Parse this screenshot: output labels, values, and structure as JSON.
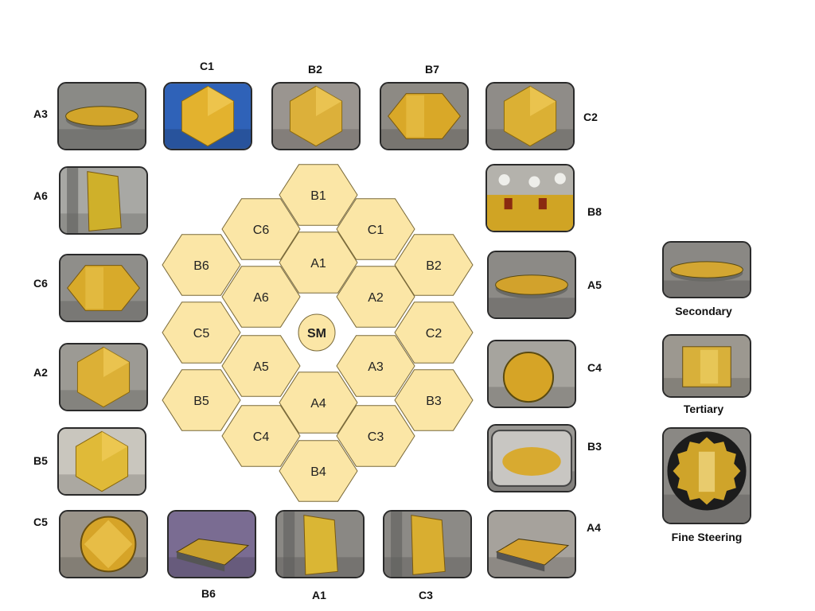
{
  "segments": [
    {
      "label": "B1"
    },
    {
      "label": "C6"
    },
    {
      "label": "C1"
    },
    {
      "label": "A1"
    },
    {
      "label": "B6"
    },
    {
      "label": "B2"
    },
    {
      "label": "A6"
    },
    {
      "label": "A2"
    },
    {
      "label": "C5"
    },
    {
      "label": "C2"
    },
    {
      "label": "A5"
    },
    {
      "label": "A3"
    },
    {
      "label": "B5"
    },
    {
      "label": "A4"
    },
    {
      "label": "B3"
    },
    {
      "label": "C4"
    },
    {
      "label": "C3"
    },
    {
      "label": "B4"
    }
  ],
  "center": {
    "label": "SM"
  },
  "photos": [
    {
      "label": "A3",
      "colors": {
        "bg": "#8a8a86",
        "mirror": "#d2a52a"
      }
    },
    {
      "label": "C1",
      "colors": {
        "bg": "#2f62b8",
        "mirror": "#e3b22e"
      }
    },
    {
      "label": "B2",
      "colors": {
        "bg": "#9a9590",
        "mirror": "#dcb03a"
      }
    },
    {
      "label": "B7",
      "colors": {
        "bg": "#8d8a84",
        "mirror": "#d9a828"
      }
    },
    {
      "label": "C2",
      "colors": {
        "bg": "#8f8c88",
        "mirror": "#dbb034"
      }
    },
    {
      "label": "A6",
      "colors": {
        "bg": "#a8a8a4",
        "mirror": "#cfb02a"
      }
    },
    {
      "label": "B8",
      "colors": {
        "bg": "#b4b2ac",
        "mirror": "#d0a424"
      }
    },
    {
      "label": "C6",
      "colors": {
        "bg": "#8f8e8a",
        "mirror": "#d8aa2a"
      }
    },
    {
      "label": "A5",
      "colors": {
        "bg": "#8c8a86",
        "mirror": "#d2a22c"
      }
    },
    {
      "label": "A2",
      "colors": {
        "bg": "#9c9a94",
        "mirror": "#dcb036"
      }
    },
    {
      "label": "C4",
      "colors": {
        "bg": "#a6a49e",
        "mirror": "#d6a426"
      }
    },
    {
      "label": "B5",
      "colors": {
        "bg": "#c9c6be",
        "mirror": "#e0ba38"
      }
    },
    {
      "label": "B3",
      "colors": {
        "bg": "#9a9894",
        "mirror": "#d8aa30"
      }
    },
    {
      "label": "C5",
      "colors": {
        "bg": "#9a948a",
        "mirror": "#d6a428"
      }
    },
    {
      "label": "B6",
      "colors": {
        "bg": "#7a6c92",
        "mirror": "#c9a02c"
      }
    },
    {
      "label": "A1",
      "colors": {
        "bg": "#8a8884",
        "mirror": "#dab634"
      }
    },
    {
      "label": "C3",
      "colors": {
        "bg": "#8c8a86",
        "mirror": "#d9ae30"
      }
    },
    {
      "label": "A4",
      "colors": {
        "bg": "#a6a29c",
        "mirror": "#d6a22c"
      }
    },
    {
      "label": "Secondary",
      "colors": {
        "bg": "#8a8884",
        "mirror": "#d3a632"
      }
    },
    {
      "label": "Tertiary",
      "colors": {
        "bg": "#9c9890",
        "mirror": "#d8b03a"
      }
    },
    {
      "label": "Fine Steering",
      "colors": {
        "bg": "#8a8884",
        "mirror": "#cfa42a"
      }
    }
  ],
  "colors": {
    "hex_fill": "#fbe6a6",
    "hex_stroke": "#7a6a3a",
    "photo_border": "#2a2a2a"
  }
}
